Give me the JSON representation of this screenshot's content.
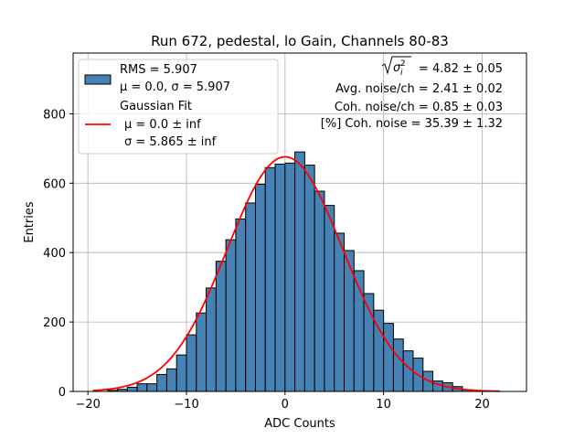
{
  "chart_data": {
    "type": "bar",
    "title": "Run 672, pedestal, lo Gain, Channels 80-83",
    "xlabel": "ADC Counts",
    "ylabel": "Entries",
    "xlim": [
      -21.5,
      24.5
    ],
    "ylim": [
      0,
      975
    ],
    "grid": true,
    "x_ticks": [
      -20,
      -10,
      0,
      10,
      20
    ],
    "y_ticks": [
      0,
      200,
      400,
      600,
      800
    ],
    "bin_width": 1,
    "bin_centers": [
      -17.5,
      -16.5,
      -15.5,
      -14.5,
      -13.5,
      -12.5,
      -11.5,
      -10.5,
      -9.5,
      -8.5,
      -7.5,
      -6.5,
      -5.5,
      -4.5,
      -3.5,
      -2.5,
      -1.5,
      -0.5,
      0.5,
      1.5,
      2.5,
      3.5,
      4.5,
      5.5,
      6.5,
      7.5,
      8.5,
      9.5,
      10.5,
      11.5,
      12.5,
      13.5,
      14.5,
      15.5,
      16.5,
      17.5,
      18.5
    ],
    "series": [
      {
        "name": "RMS = 5.907\nμ = 0.0, σ = 5.907",
        "kind": "histogram",
        "color": "#4682b4",
        "edgecolor": "#000000",
        "values": [
          3,
          6,
          12,
          22,
          22,
          49,
          65,
          105,
          163,
          226,
          298,
          375,
          437,
          497,
          543,
          597,
          645,
          655,
          658,
          690,
          652,
          577,
          536,
          456,
          406,
          348,
          282,
          234,
          196,
          151,
          117,
          96,
          58,
          30,
          25,
          14,
          5
        ]
      },
      {
        "name": "Gaussian Fit",
        "kind": "line",
        "color": "#ff0000",
        "mu": 0.0,
        "sigma": 5.865,
        "amplitude": 676,
        "x_range": [
          -19.5,
          21.8
        ]
      }
    ],
    "legend": {
      "position": "upper-left",
      "entries": [
        {
          "label_line1": "RMS = 5.907",
          "label_line2": "μ = 0.0, σ = 5.907"
        },
        {
          "label_line1": "Gaussian Fit",
          "label_line2": "μ = 0.0 ± inf",
          "label_line3": "σ = 5.865 ± inf"
        }
      ]
    },
    "annotations": {
      "position": "upper-right",
      "sigma_sum_value": "= 4.82 ± 0.05",
      "avg_noise": "Avg. noise/ch = 2.41 ± 0.02",
      "coh_noise": "Coh. noise/ch = 0.85 ± 0.03",
      "coh_percent": "[%] Coh. noise = 35.39 ± 1.32"
    }
  }
}
